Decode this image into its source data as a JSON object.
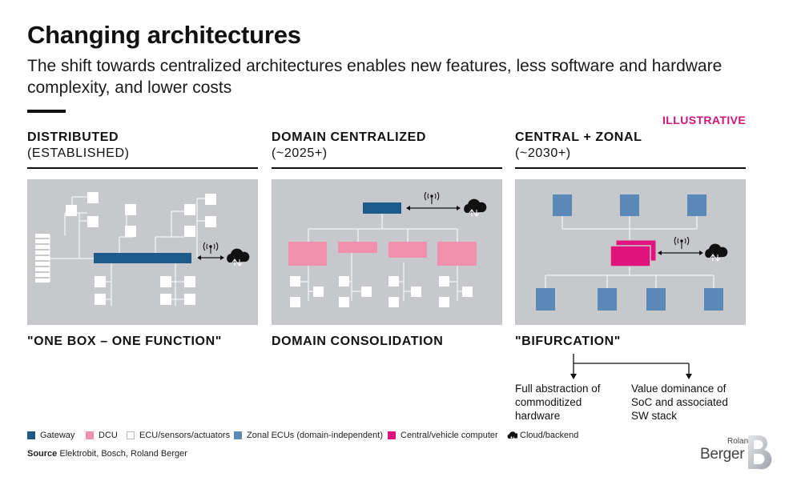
{
  "header": {
    "title": "Changing architectures",
    "subtitle": "The shift towards centralized architectures enables new features, less software and hardware complexity, and lower costs",
    "tag": "ILLUSTRATIVE"
  },
  "columns": [
    {
      "heading": "DISTRIBUTED",
      "subheading": "(ESTABLISHED)",
      "caption": "\"ONE BOX – ONE FUNCTION\""
    },
    {
      "heading": "DOMAIN CENTRALIZED",
      "subheading": "(~2025+)",
      "caption": "DOMAIN CONSOLIDATION"
    },
    {
      "heading": "CENTRAL + ZONAL",
      "subheading": "(~2030+)",
      "caption": "\"BIFURCATION\""
    }
  ],
  "bifurcation": {
    "left": "Full abstraction of commoditized hardware",
    "right": "Value dominance of SoC and associated SW stack"
  },
  "legend": [
    {
      "label": "Gateway",
      "color": "#1d5a8c",
      "icon": "square"
    },
    {
      "label": "DCU",
      "color": "#f08fae",
      "icon": "square"
    },
    {
      "label": "ECU/sensors/actuators",
      "color": "#ffffff",
      "icon": "square-outline"
    },
    {
      "label": "Zonal ECUs (domain-independent)",
      "color": "#5b89b7",
      "icon": "square"
    },
    {
      "label": "Central/vehicle computer",
      "color": "#e0147c",
      "icon": "square"
    },
    {
      "label": "Cloud/backend",
      "color": "#111111",
      "icon": "cloud-icon"
    }
  ],
  "source": {
    "label": "Source",
    "text": "Elektrobit, Bosch, Roland Berger"
  },
  "logo": {
    "line1": "Roland",
    "line2": "Berger",
    "mark": "B"
  },
  "colors": {
    "gateway": "#1d5a8c",
    "dcu": "#f08fae",
    "zonal": "#5b89b7",
    "central": "#e0147c",
    "panel": "#c7c8cb",
    "accent": "#d4137a"
  }
}
